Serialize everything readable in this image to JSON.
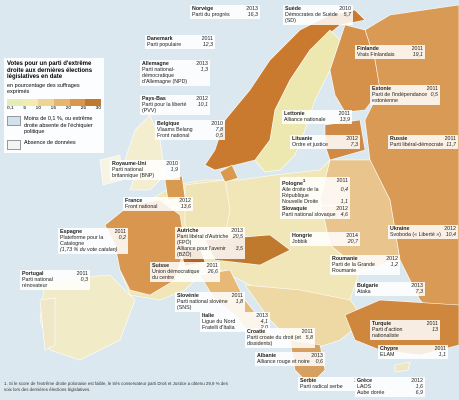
{
  "legend": {
    "title": "Votes pour un parti d'extrême droite aux dernières élections législatives en date",
    "subtitle": "en pourcentage des suffrages exprimés",
    "scale_labels": [
      "0,1",
      "5",
      "10",
      "15",
      "20",
      "25",
      "30"
    ],
    "absent": "Moins de 0,1 %, ou extrême droite absente de l'échiquier politique",
    "no_data": "Absence de données"
  },
  "labels": [
    {
      "country": "Norvège",
      "year": "2013",
      "parties": [
        {
          "name": "Parti du progrès",
          "value": "16,3"
        }
      ]
    },
    {
      "country": "Suède",
      "year": "2010",
      "parties": [
        {
          "name": "Démocrates de Suède (SD)",
          "value": "5,7"
        }
      ]
    },
    {
      "country": "Danemark",
      "year": "2011",
      "parties": [
        {
          "name": "Parti populaire",
          "value": "12,3"
        }
      ]
    },
    {
      "country": "Finlande",
      "year": "2011",
      "parties": [
        {
          "name": "Vrais Finlandais",
          "value": "19,1"
        }
      ]
    },
    {
      "country": "Allemagne",
      "year": "2013",
      "parties": [
        {
          "name": "Parti national-démocratique d'Allemagne (NPD)",
          "value": "1,3"
        }
      ]
    },
    {
      "country": "Pays-Bas",
      "year": "2012",
      "parties": [
        {
          "name": "Parti pour la liberté (PVV)",
          "value": "10,1"
        }
      ]
    },
    {
      "country": "Estonie",
      "year": "2011",
      "parties": [
        {
          "name": "Parti de l'indépendance estonienne",
          "value": "0,5"
        }
      ]
    },
    {
      "country": "Lettonie",
      "year": "2011",
      "parties": [
        {
          "name": "Alliance nationale",
          "value": "13,9"
        }
      ]
    },
    {
      "country": "Belgique",
      "year": "2010",
      "parties": [
        {
          "name": "Vlaams Belang",
          "value": "7,8"
        },
        {
          "name": "Front national",
          "value": "0,5"
        }
      ]
    },
    {
      "country": "Lituanie",
      "year": "2012",
      "parties": [
        {
          "name": "Ordre et justice",
          "value": "7,3"
        }
      ]
    },
    {
      "country": "Russie",
      "year": "2011",
      "parties": [
        {
          "name": "Parti libéral-démocrate",
          "value": "11,7"
        }
      ]
    },
    {
      "country": "Royaume-Uni",
      "year": "2010",
      "parties": [
        {
          "name": "Parti national britannique (BNP)",
          "value": "1,9"
        }
      ]
    },
    {
      "country": "Pologne",
      "note_ref": "1",
      "year": "2011",
      "parties": [
        {
          "name": "Aile droite de la République",
          "value": "0,4"
        },
        {
          "name": "Nouvelle Droite",
          "value": "1,1"
        }
      ]
    },
    {
      "country": "France",
      "year": "2012",
      "parties": [
        {
          "name": "Front national",
          "value": "13,6"
        }
      ]
    },
    {
      "country": "Slovaquie",
      "year": "2012",
      "parties": [
        {
          "name": "Parti national slovaque",
          "value": "4,6"
        }
      ]
    },
    {
      "country": "Autriche",
      "year": "2013",
      "parties": [
        {
          "name": "Parti libéral d'Autriche (FPÖ)",
          "value": "20,5"
        },
        {
          "name": "Alliance pour l'avenir (BZÖ)",
          "value": "3,5"
        }
      ]
    },
    {
      "country": "Espagne",
      "year": "2011",
      "parties": [
        {
          "name": "Plateforme pour la Catalogne",
          "value": "0,2"
        }
      ],
      "note": "(1,73 % du vote catalan)"
    },
    {
      "country": "Ukraine",
      "year": "2012",
      "parties": [
        {
          "name": "Svoboda (« Liberté »)",
          "value": "10,4"
        }
      ]
    },
    {
      "country": "Hongrie",
      "year": "2014",
      "parties": [
        {
          "name": "Jobbik",
          "value": "20,7"
        }
      ]
    },
    {
      "country": "Suisse",
      "year": "2011",
      "parties": [
        {
          "name": "Union démocratique du centre",
          "value": "26,6"
        }
      ]
    },
    {
      "country": "Roumanie",
      "year": "2012",
      "parties": [
        {
          "name": "Parti de la Grande Roumanie",
          "value": "1,2"
        }
      ]
    },
    {
      "country": "Portugal",
      "year": "2011",
      "parties": [
        {
          "name": "Parti national rénovateur",
          "value": "0,3"
        }
      ]
    },
    {
      "country": "Slovénie",
      "year": "2011",
      "parties": [
        {
          "name": "Parti national slovène (SNS)",
          "value": "1,8"
        }
      ]
    },
    {
      "country": "Italie",
      "year": "2013",
      "parties": [
        {
          "name": "Ligue du Nord",
          "value": "4,1"
        },
        {
          "name": "Fratelli d'Italia",
          "value": "2,0"
        }
      ]
    },
    {
      "country": "Bulgarie",
      "year": "2013",
      "parties": [
        {
          "name": "Ataka",
          "value": "7,3"
        }
      ]
    },
    {
      "country": "Croatie",
      "year": "2011",
      "parties": [
        {
          "name": "Parti croate du droit (et dissidents)",
          "value": "5,8"
        }
      ]
    },
    {
      "country": "Turquie",
      "year": "2011",
      "parties": [
        {
          "name": "Parti d'action nationaliste",
          "value": "13"
        }
      ]
    },
    {
      "country": "Albanie",
      "year": "2013",
      "parties": [
        {
          "name": "Alliance rouge et noire",
          "value": "0,6"
        }
      ]
    },
    {
      "country": "Chypre",
      "year": "2011",
      "parties": [
        {
          "name": "ELAM",
          "value": "1,1"
        }
      ]
    },
    {
      "country": "Serbie",
      "year": "2012",
      "parties": [
        {
          "name": "Parti radical serbe",
          "value": "4,6"
        }
      ]
    },
    {
      "country": "Grèce",
      "year": "2012",
      "parties": [
        {
          "name": "LAOS",
          "value": "1,6"
        },
        {
          "name": "Aube dorée",
          "value": "6,9"
        }
      ]
    }
  ],
  "footnote": "1. Si le score de l'extrême droite polonaise est faible, le très conservateur parti Droit et Justice a obtenu 29,9 % des voix lors des dernières élections législatives."
}
